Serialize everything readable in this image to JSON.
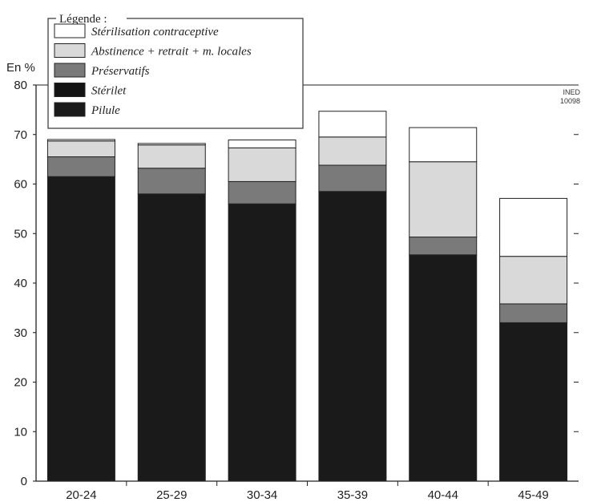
{
  "chart_data": {
    "type": "bar",
    "stacked": true,
    "unit_label": "En %",
    "credit": [
      "INED",
      "10098"
    ],
    "legend_title": "Légende :",
    "legend_placement": "top-left",
    "ylim": [
      0,
      80
    ],
    "yticks": [
      0,
      10,
      20,
      30,
      40,
      50,
      60,
      70,
      80
    ],
    "categories": [
      "20-24",
      "25-29",
      "30-34",
      "35-39",
      "40-44",
      "45-49"
    ],
    "series": [
      {
        "name": "Pilule",
        "color": "#1a1a1a",
        "values": [
          61.5,
          58.0,
          56.0,
          58.5,
          45.7,
          32.0
        ]
      },
      {
        "name": "Stérilet",
        "color": "#141414",
        "values": [
          0,
          0,
          0,
          0,
          0,
          0
        ]
      },
      {
        "name": "Préservatifs",
        "color": "#7a7a7a",
        "values": [
          4.0,
          5.2,
          4.5,
          5.3,
          3.6,
          3.8
        ]
      },
      {
        "name": "Abstinence + retrait + m. locales",
        "color": "#d9d9d9",
        "values": [
          3.2,
          4.7,
          6.8,
          5.7,
          15.2,
          9.6
        ]
      },
      {
        "name": "Stérilisation contraceptive",
        "color": "#ffffff",
        "values": [
          0.3,
          0.3,
          1.6,
          5.2,
          6.9,
          11.7
        ]
      }
    ],
    "legend_order": [
      4,
      3,
      2,
      1,
      0
    ],
    "grid": false
  }
}
